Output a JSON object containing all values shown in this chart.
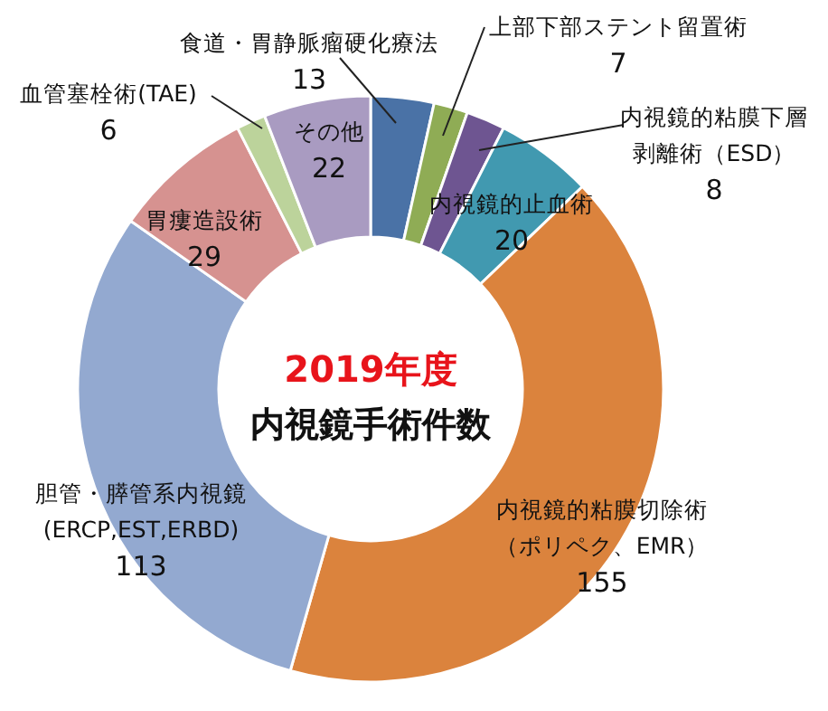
{
  "chart_data": {
    "type": "donut",
    "title": "2019年度",
    "subtitle": "内視鏡手術件数",
    "categories": [
      "食道・胃静脈瘤硬化療法",
      "上部下部ステント留置術",
      "内視鏡的粘膜下層剥離術（ESD）",
      "内視鏡的止血術",
      "内視鏡的粘膜切除術（ポリペク、EMR）",
      "胆管・膵管系内視鏡(ERCP,EST,ERBD)",
      "胃瘻造設術",
      "血管塞栓術(TAE)",
      "その他"
    ],
    "values": [
      13,
      7,
      8,
      20,
      155,
      113,
      29,
      6,
      22
    ],
    "colors": [
      "#4a72a6",
      "#8fac55",
      "#6e5591",
      "#4199b0",
      "#db833d",
      "#93a9d0",
      "#d69290",
      "#bcd39b",
      "#a99bc1"
    ],
    "data_labels": true
  }
}
